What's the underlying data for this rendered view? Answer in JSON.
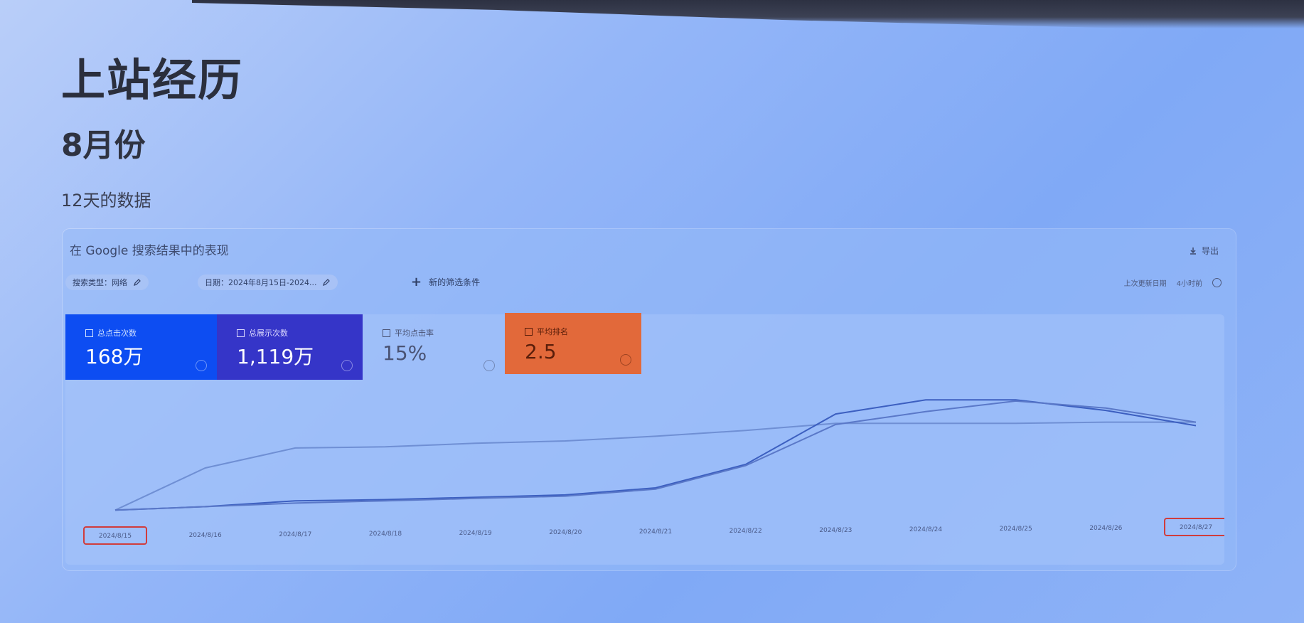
{
  "slide": {
    "title": "上站经历",
    "subtitle": "8月份",
    "caption": "12天的数据"
  },
  "card": {
    "title": "在 Google 搜索结果中的表现",
    "export_label": "导出",
    "filters": [
      {
        "label": "搜索类型：网络"
      },
      {
        "label": "日期：2024年8月15日-2024..."
      }
    ],
    "add_filter_label": "新的筛选条件",
    "updated_label": "上次更新日期",
    "updated_value": "4小时前"
  },
  "metrics": [
    {
      "label": "总点击次数",
      "value": "168万",
      "color": "#0d4df2",
      "selected": true
    },
    {
      "label": "总展示次数",
      "value": "1,119万",
      "color": "#3535c8",
      "selected": true
    },
    {
      "label": "平均点击率",
      "value": "15%",
      "color": "#4a5374",
      "selected": false
    },
    {
      "label": "平均排名",
      "value": "2.5",
      "color": "#e2693a",
      "selected": true
    }
  ],
  "chart_data": {
    "type": "line",
    "x": [
      "2024/8/15",
      "2024/8/16",
      "2024/8/17",
      "2024/8/18",
      "2024/8/19",
      "2024/8/20",
      "2024/8/21",
      "2024/8/22",
      "2024/8/23",
      "2024/8/24",
      "2024/8/25",
      "2024/8/26",
      "2024/8/27"
    ],
    "series": [
      {
        "values": [
          1,
          37,
          54,
          55,
          58,
          60,
          64,
          69,
          75,
          75,
          75,
          76,
          76
        ],
        "color": "#6f8fd4"
      },
      {
        "values": [
          1,
          4,
          9,
          10,
          12,
          14,
          20,
          40,
          83,
          95,
          95,
          86,
          73
        ],
        "color": "#3c5fc0"
      },
      {
        "values": [
          1,
          4,
          7,
          9,
          11,
          13,
          19,
          39,
          74,
          85,
          94,
          88,
          76
        ],
        "color": "#5a78c8"
      }
    ],
    "grid": false
  }
}
